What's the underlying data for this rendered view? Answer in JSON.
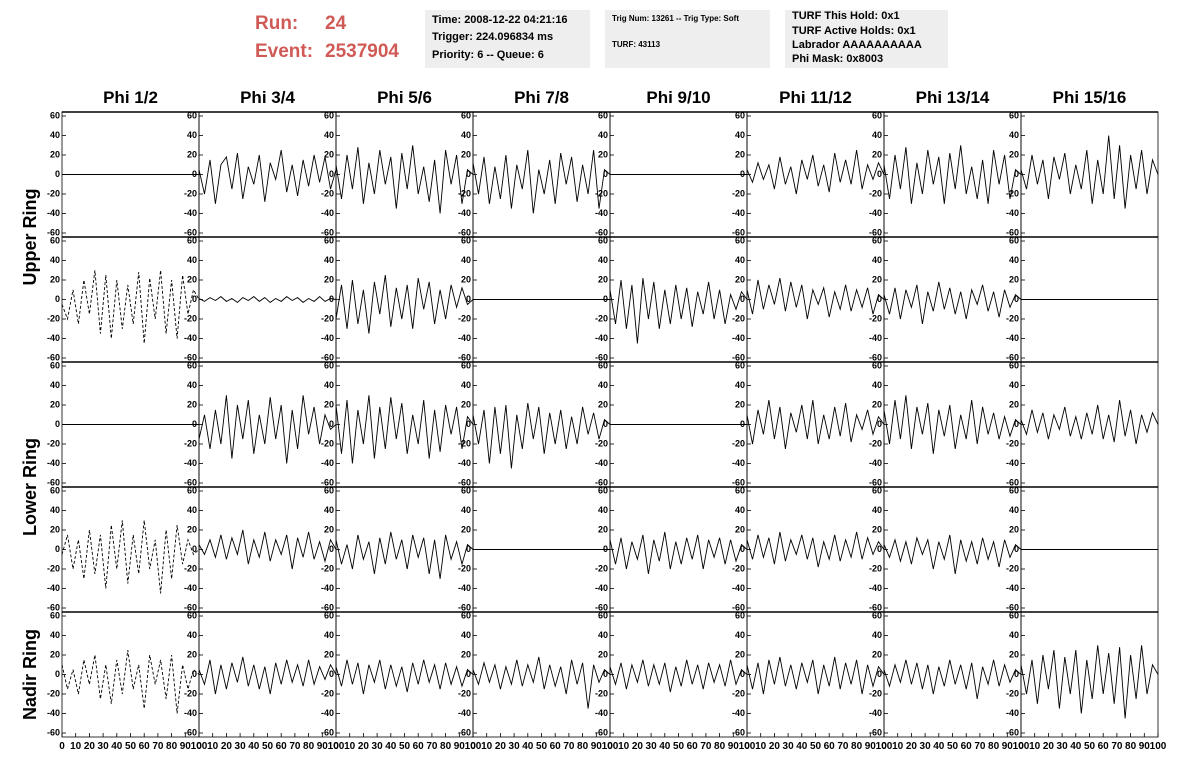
{
  "header": {
    "run_label": "Run:",
    "run": "24",
    "event_label": "Event:",
    "event": "2537904",
    "info": [
      [
        "Time: 2008-12-22 04:21:16",
        "Trigger: 224.096834 ms",
        "Priority: 6 -- Queue: 6"
      ],
      [
        "Trig Num: 13261 -- Trig Type: Soft",
        "TURF: 43113"
      ],
      [
        "TURF This Hold: 0x1",
        "TURF Active Holds: 0x1",
        "Labrador AAAAAAAAAA",
        "Phi Mask: 0x8003"
      ]
    ]
  },
  "columns": [
    "Phi 1/2",
    "Phi 3/4",
    "Phi 5/6",
    "Phi 7/8",
    "Phi 9/10",
    "Phi 11/12",
    "Phi 13/14",
    "Phi 15/16"
  ],
  "ring_labels": [
    "Upper Ring",
    "Lower Ring",
    "Nadir Ring"
  ],
  "axes": {
    "xlim": [
      0,
      100
    ],
    "xticks": [
      0,
      10,
      20,
      30,
      40,
      50,
      60,
      70,
      80,
      90,
      100
    ],
    "ylim": [
      -60,
      60
    ],
    "yticks": [
      -60,
      -40,
      -20,
      0,
      20,
      40,
      60
    ],
    "x": [
      0,
      4,
      8,
      12,
      16,
      20,
      24,
      28,
      32,
      36,
      40,
      44,
      48,
      52,
      56,
      60,
      64,
      68,
      72,
      76,
      80,
      84,
      88,
      92,
      96,
      100
    ]
  },
  "rows": [
    [
      {
        "style": "solid",
        "values": [
          0,
          0,
          0,
          0,
          0,
          0,
          0,
          0,
          0,
          0,
          0,
          0,
          0,
          0,
          0,
          0,
          0,
          0,
          0,
          0,
          0,
          0,
          0,
          0,
          0,
          0
        ]
      },
      {
        "style": "solid",
        "values": [
          5,
          -20,
          15,
          -30,
          10,
          18,
          -15,
          22,
          -25,
          8,
          -10,
          20,
          -28,
          12,
          -5,
          25,
          -18,
          10,
          -22,
          15,
          -12,
          20,
          -8,
          18,
          -15,
          5
        ]
      },
      {
        "style": "solid",
        "values": [
          10,
          -25,
          20,
          -15,
          28,
          -30,
          12,
          -20,
          25,
          -10,
          18,
          -35,
          22,
          -15,
          30,
          -20,
          8,
          -28,
          15,
          -40,
          25,
          -10,
          20,
          -30,
          5,
          0
        ]
      },
      {
        "style": "solid",
        "values": [
          12,
          -20,
          18,
          -30,
          8,
          -25,
          20,
          -35,
          10,
          -15,
          25,
          -40,
          5,
          -20,
          15,
          -30,
          22,
          -10,
          18,
          -28,
          10,
          -20,
          25,
          -35,
          5,
          0
        ]
      },
      {
        "style": "solid",
        "values": [
          0,
          0,
          0,
          0,
          0,
          0,
          0,
          0,
          0,
          0,
          0,
          0,
          0,
          0,
          0,
          0,
          0,
          0,
          0,
          0,
          0,
          0,
          0,
          0,
          0,
          0
        ]
      },
      {
        "style": "solid",
        "values": [
          5,
          -8,
          12,
          -5,
          10,
          -15,
          18,
          -10,
          8,
          -20,
          15,
          -5,
          20,
          -12,
          10,
          -18,
          22,
          -8,
          15,
          -10,
          25,
          -15,
          10,
          -5,
          12,
          0
        ]
      },
      {
        "style": "solid",
        "values": [
          10,
          -25,
          20,
          -15,
          28,
          -30,
          12,
          -20,
          25,
          -10,
          18,
          -30,
          22,
          -15,
          30,
          -20,
          8,
          -25,
          15,
          -30,
          25,
          -10,
          20,
          -25,
          5,
          0
        ]
      },
      {
        "style": "solid",
        "values": [
          5,
          -15,
          20,
          -10,
          15,
          -25,
          18,
          -5,
          22,
          -20,
          10,
          -15,
          25,
          -30,
          15,
          -20,
          40,
          -25,
          30,
          -35,
          20,
          -15,
          25,
          -20,
          15,
          0
        ]
      }
    ],
    [
      {
        "style": "dashed",
        "values": [
          -5,
          -20,
          10,
          -25,
          20,
          -15,
          30,
          -35,
          25,
          -40,
          20,
          -30,
          15,
          -25,
          28,
          -45,
          22,
          -20,
          30,
          -35,
          20,
          -40,
          25,
          -15,
          10,
          0
        ]
      },
      {
        "style": "solid",
        "values": [
          1,
          -2,
          2,
          -1,
          3,
          -2,
          1,
          -3,
          2,
          -1,
          3,
          -2,
          2,
          -3,
          1,
          -2,
          3,
          -1,
          2,
          -3,
          1,
          -2,
          3,
          -2,
          1,
          0
        ]
      },
      {
        "style": "solid",
        "values": [
          -20,
          15,
          -30,
          20,
          -25,
          10,
          -35,
          18,
          -15,
          25,
          -28,
          12,
          -20,
          15,
          -30,
          22,
          -10,
          18,
          -25,
          10,
          -20,
          15,
          -8,
          12,
          -5,
          0
        ]
      },
      {
        "style": "solid",
        "values": [
          0,
          0,
          0,
          0,
          0,
          0,
          0,
          0,
          0,
          0,
          0,
          0,
          0,
          0,
          0,
          0,
          0,
          0,
          0,
          0,
          0,
          0,
          0,
          0,
          0,
          0
        ]
      },
      {
        "style": "solid",
        "values": [
          10,
          -25,
          20,
          -30,
          15,
          -45,
          22,
          -20,
          18,
          -30,
          10,
          -25,
          15,
          -20,
          12,
          -28,
          8,
          -15,
          18,
          -20,
          10,
          -25,
          5,
          -10,
          8,
          0
        ]
      },
      {
        "style": "solid",
        "values": [
          10,
          -15,
          20,
          -10,
          15,
          -5,
          22,
          -12,
          18,
          -8,
          15,
          -20,
          10,
          -5,
          12,
          -18,
          8,
          -10,
          15,
          -12,
          10,
          -8,
          12,
          -15,
          5,
          0
        ]
      },
      {
        "style": "solid",
        "values": [
          5,
          -15,
          12,
          -20,
          10,
          -8,
          15,
          -25,
          8,
          -12,
          18,
          -10,
          12,
          -15,
          8,
          -20,
          10,
          -5,
          15,
          -12,
          8,
          -18,
          10,
          -8,
          5,
          0
        ]
      },
      {
        "style": "solid",
        "values": [
          0,
          0,
          0,
          0,
          0,
          0,
          0,
          0,
          0,
          0,
          0,
          0,
          0,
          0,
          0,
          0,
          0,
          0,
          0,
          0,
          0,
          0,
          0,
          0,
          0,
          0
        ]
      }
    ],
    [
      {
        "style": "solid",
        "values": [
          0,
          0,
          0,
          0,
          0,
          0,
          0,
          0,
          0,
          0,
          0,
          0,
          0,
          0,
          0,
          0,
          0,
          0,
          0,
          0,
          0,
          0,
          0,
          0,
          0,
          0
        ]
      },
      {
        "style": "solid",
        "values": [
          -15,
          10,
          -25,
          15,
          -20,
          30,
          -35,
          20,
          -15,
          25,
          -30,
          10,
          -20,
          28,
          -15,
          20,
          -40,
          15,
          -25,
          30,
          -10,
          18,
          -20,
          10,
          -5,
          0
        ]
      },
      {
        "style": "solid",
        "values": [
          20,
          -30,
          25,
          -40,
          15,
          -20,
          30,
          -35,
          18,
          -25,
          28,
          -15,
          22,
          -30,
          10,
          -20,
          25,
          -35,
          15,
          -28,
          20,
          -10,
          18,
          -25,
          8,
          0
        ]
      },
      {
        "style": "solid",
        "values": [
          10,
          -20,
          15,
          -40,
          18,
          -30,
          20,
          -45,
          10,
          -25,
          22,
          -15,
          18,
          -30,
          12,
          -20,
          15,
          -25,
          8,
          -20,
          18,
          -10,
          12,
          -15,
          5,
          0
        ]
      },
      {
        "style": "solid",
        "values": [
          0,
          0,
          0,
          0,
          0,
          0,
          0,
          0,
          0,
          0,
          0,
          0,
          0,
          0,
          0,
          0,
          0,
          0,
          0,
          0,
          0,
          0,
          0,
          0,
          0,
          0
        ]
      },
      {
        "style": "solid",
        "values": [
          10,
          -20,
          15,
          -10,
          25,
          -15,
          18,
          -25,
          12,
          -8,
          20,
          -15,
          25,
          -20,
          10,
          -15,
          18,
          -12,
          22,
          -18,
          10,
          -5,
          15,
          -10,
          8,
          0
        ]
      },
      {
        "style": "solid",
        "values": [
          15,
          -20,
          25,
          -15,
          30,
          -25,
          18,
          -10,
          22,
          -30,
          15,
          -12,
          20,
          -25,
          10,
          -15,
          25,
          -20,
          18,
          -10,
          12,
          -15,
          8,
          -12,
          5,
          0
        ]
      },
      {
        "style": "solid",
        "values": [
          5,
          -10,
          15,
          -8,
          12,
          -15,
          10,
          -5,
          18,
          -12,
          8,
          -15,
          12,
          -10,
          20,
          -15,
          10,
          -18,
          25,
          -12,
          15,
          -20,
          10,
          -8,
          12,
          0
        ]
      }
    ],
    [
      {
        "style": "dashed",
        "values": [
          -5,
          15,
          -20,
          10,
          -30,
          20,
          -25,
          15,
          -40,
          25,
          -20,
          30,
          -35,
          15,
          -25,
          30,
          -20,
          10,
          -45,
          20,
          -30,
          25,
          -15,
          10,
          -5,
          0
        ]
      },
      {
        "style": "solid",
        "values": [
          5,
          -5,
          10,
          -8,
          15,
          -10,
          12,
          -5,
          20,
          -15,
          10,
          -8,
          18,
          -12,
          10,
          -5,
          15,
          -20,
          12,
          -8,
          18,
          -10,
          8,
          -12,
          10,
          0
        ]
      },
      {
        "style": "solid",
        "values": [
          10,
          -15,
          5,
          -20,
          15,
          -10,
          8,
          -25,
          12,
          -15,
          18,
          -10,
          10,
          -20,
          15,
          -8,
          12,
          -25,
          10,
          -30,
          15,
          -10,
          8,
          -15,
          5,
          0
        ]
      },
      {
        "style": "solid",
        "values": [
          0,
          0,
          0,
          0,
          0,
          0,
          0,
          0,
          0,
          0,
          0,
          0,
          0,
          0,
          0,
          0,
          0,
          0,
          0,
          0,
          0,
          0,
          0,
          0,
          0,
          0
        ]
      },
      {
        "style": "solid",
        "values": [
          10,
          -15,
          12,
          -20,
          8,
          -10,
          15,
          -25,
          10,
          -12,
          18,
          -20,
          8,
          -15,
          12,
          -10,
          15,
          -20,
          10,
          -8,
          12,
          -15,
          10,
          -12,
          5,
          0
        ]
      },
      {
        "style": "solid",
        "values": [
          10,
          -10,
          15,
          -8,
          12,
          -15,
          18,
          -12,
          10,
          -5,
          15,
          -10,
          12,
          -18,
          8,
          -10,
          15,
          -12,
          10,
          -8,
          18,
          -10,
          12,
          -5,
          8,
          0
        ]
      },
      {
        "style": "solid",
        "values": [
          5,
          -8,
          10,
          -12,
          8,
          -15,
          12,
          -5,
          10,
          -20,
          8,
          -10,
          15,
          -25,
          10,
          -12,
          8,
          -15,
          12,
          -10,
          8,
          -18,
          10,
          -8,
          5,
          0
        ]
      },
      {
        "style": "solid",
        "values": [
          0,
          0,
          0,
          0,
          0,
          0,
          0,
          0,
          0,
          0,
          0,
          0,
          0,
          0,
          0,
          0,
          0,
          0,
          0,
          0,
          0,
          0,
          0,
          0,
          0,
          0
        ]
      }
    ],
    [
      {
        "style": "dashed",
        "values": [
          10,
          -15,
          5,
          -20,
          15,
          -10,
          20,
          -25,
          10,
          -30,
          15,
          -20,
          25,
          -15,
          10,
          -35,
          20,
          -10,
          15,
          -25,
          20,
          -40,
          10,
          -15,
          5,
          0
        ]
      },
      {
        "style": "solid",
        "values": [
          5,
          -10,
          15,
          -20,
          10,
          -15,
          12,
          -8,
          18,
          -12,
          10,
          -15,
          8,
          -20,
          12,
          -10,
          15,
          -8,
          10,
          -12,
          15,
          -10,
          8,
          -5,
          10,
          0
        ]
      },
      {
        "style": "solid",
        "values": [
          8,
          -12,
          15,
          -10,
          12,
          -20,
          10,
          -8,
          15,
          -15,
          10,
          -12,
          8,
          -18,
          12,
          -10,
          15,
          -8,
          10,
          -15,
          12,
          -10,
          8,
          -12,
          5,
          0
        ]
      },
      {
        "style": "solid",
        "values": [
          5,
          -10,
          12,
          -8,
          10,
          -15,
          8,
          -10,
          15,
          -12,
          10,
          -8,
          18,
          -15,
          10,
          -12,
          8,
          -20,
          15,
          -10,
          12,
          -35,
          10,
          -8,
          5,
          0
        ]
      },
      {
        "style": "solid",
        "values": [
          8,
          -10,
          12,
          -15,
          10,
          -8,
          15,
          -12,
          10,
          -10,
          12,
          -18,
          8,
          -12,
          15,
          -10,
          10,
          -15,
          12,
          -8,
          10,
          -12,
          15,
          -10,
          5,
          0
        ]
      },
      {
        "style": "solid",
        "values": [
          10,
          -15,
          12,
          -20,
          15,
          -10,
          18,
          -12,
          10,
          -15,
          12,
          -8,
          15,
          -20,
          10,
          -12,
          18,
          -15,
          12,
          -10,
          15,
          -20,
          10,
          -12,
          8,
          0
        ]
      },
      {
        "style": "solid",
        "values": [
          5,
          -12,
          10,
          -8,
          15,
          -10,
          12,
          -15,
          10,
          -20,
          8,
          -12,
          15,
          -10,
          10,
          -15,
          12,
          -25,
          8,
          -10,
          15,
          -12,
          10,
          -8,
          5,
          0
        ]
      },
      {
        "style": "solid",
        "values": [
          10,
          -20,
          15,
          -30,
          20,
          -15,
          25,
          -35,
          18,
          -20,
          25,
          -40,
          15,
          -25,
          30,
          -20,
          22,
          -30,
          28,
          -45,
          20,
          -25,
          30,
          -20,
          10,
          0
        ]
      }
    ]
  ]
}
